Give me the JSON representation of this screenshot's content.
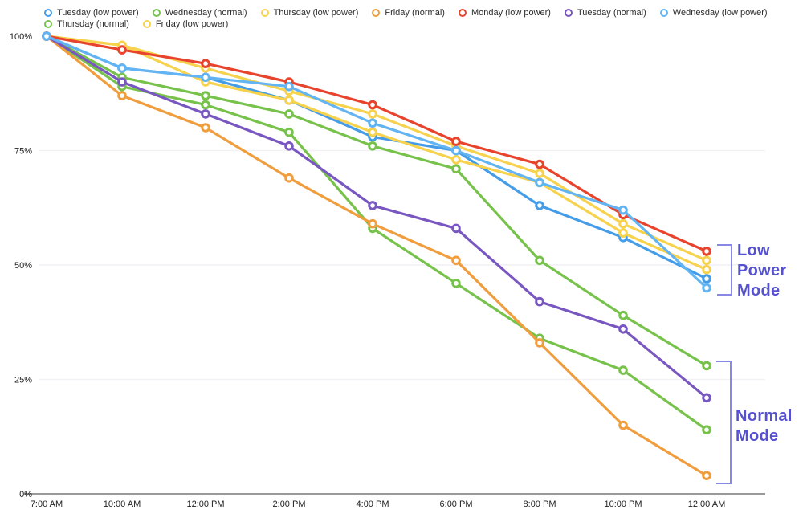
{
  "chart_data": {
    "type": "line",
    "title": "",
    "xlabel": "",
    "ylabel": "",
    "ylim": [
      0,
      100
    ],
    "grid": "faint horizontal gridlines at 25%, 50%, 75%",
    "legend_position": "top",
    "x_labels": [
      "7:00 AM",
      "10:00 AM",
      "12:00 PM",
      "2:00 PM",
      "4:00 PM",
      "6:00 PM",
      "8:00 PM",
      "10:00 PM",
      "12:00 AM"
    ],
    "y_ticks": [
      {
        "label": "100%",
        "pct": 100
      },
      {
        "label": "75%",
        "pct": 75
      },
      {
        "label": "50%",
        "pct": 50
      },
      {
        "label": "25%",
        "pct": 25
      },
      {
        "label": "0%",
        "pct": 0
      }
    ],
    "series": [
      {
        "name": "Tuesday (low power)",
        "color": "#459CE7",
        "values": [
          100,
          93,
          91,
          86,
          78,
          75,
          63,
          56,
          47
        ]
      },
      {
        "name": "Thursday (normal)",
        "color": "#77C24A",
        "values": [
          100,
          89,
          85,
          79,
          58,
          46,
          34,
          27,
          14
        ]
      },
      {
        "name": "Wednesday (normal)",
        "color": "#77C24A",
        "values": [
          100,
          91,
          87,
          83,
          76,
          71,
          51,
          39,
          28
        ]
      },
      {
        "name": "Friday (low power)",
        "color": "#F7D24D",
        "values": [
          100,
          98,
          90,
          86,
          79,
          73,
          68,
          57,
          49
        ]
      },
      {
        "name": "Thursday (low power)",
        "color": "#F7D24D",
        "values": [
          100,
          98,
          93,
          88,
          83,
          76,
          70,
          59,
          51
        ]
      },
      {
        "name": "Friday (normal)",
        "color": "#F09D3E",
        "values": [
          100,
          87,
          80,
          69,
          59,
          51,
          33,
          15,
          4
        ]
      },
      {
        "name": "Monday (low power)",
        "color": "#E8432D",
        "values": [
          100,
          97,
          94,
          90,
          85,
          77,
          72,
          61,
          53
        ]
      },
      {
        "name": "Tuesday (normal)",
        "color": "#7957C1",
        "values": [
          100,
          90,
          83,
          76,
          63,
          58,
          42,
          36,
          21
        ]
      },
      {
        "name": "Wednesday (low power)",
        "color": "#63B4F2",
        "values": [
          100,
          93,
          91,
          89,
          81,
          75,
          68,
          62,
          45
        ]
      }
    ],
    "legend_rows": [
      [
        0,
        2,
        4,
        5,
        6,
        7,
        8
      ],
      [
        1,
        3
      ]
    ]
  },
  "annotations": {
    "low_power": {
      "text": "Low Power Mode",
      "color": "#5551D1"
    },
    "normal_mode": {
      "text": "Normal Mode",
      "color": "#5551D1"
    }
  }
}
